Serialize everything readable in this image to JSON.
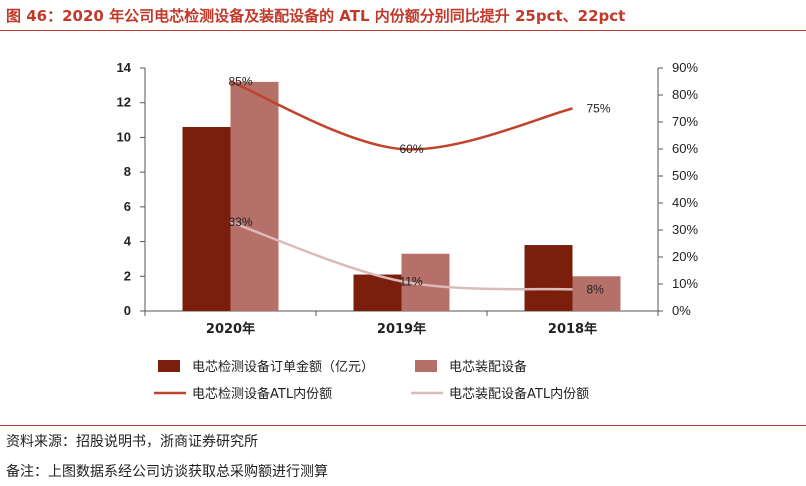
{
  "header": {
    "title": "图 46：2020 年公司电芯检测设备及装配设备的 ATL 内份额分别同比提升 25pct、22pct"
  },
  "footer": {
    "source": "资料来源：招股说明书，浙商证券研究所",
    "remark": "备注：上图数据系经公司访谈获取总采购额进行测算"
  },
  "chart_data": {
    "type": "bar",
    "categories": [
      "2020年",
      "2019年",
      "2018年"
    ],
    "series": [
      {
        "name": "电芯检测设备订单金额（亿元）",
        "kind": "bar",
        "axis": "left",
        "color": "#7b1f0c",
        "values": [
          10.6,
          2.1,
          3.8
        ]
      },
      {
        "name": "电芯装配设备",
        "kind": "bar",
        "axis": "left",
        "color": "#b5706a",
        "values": [
          13.2,
          3.3,
          2.0
        ]
      },
      {
        "name": "电芯检测设备ATL内份额",
        "kind": "line",
        "axis": "right",
        "color": "#c0442a",
        "values": [
          0.85,
          0.6,
          0.75
        ],
        "labels": [
          "85%",
          "60%",
          "75%"
        ]
      },
      {
        "name": "电芯装配设备ATL内份额",
        "kind": "line",
        "axis": "right",
        "color": "#dbbbb9",
        "values": [
          0.33,
          0.11,
          0.08
        ],
        "labels": [
          "33%",
          "11%",
          "8%"
        ]
      }
    ],
    "y_left": {
      "min": 0,
      "max": 14,
      "ticks": [
        "0",
        "2",
        "4",
        "6",
        "8",
        "10",
        "12",
        "14"
      ]
    },
    "y_right": {
      "min": 0,
      "max": 0.9,
      "ticks": [
        "0%",
        "10%",
        "20%",
        "30%",
        "40%",
        "50%",
        "60%",
        "70%",
        "80%",
        "90%"
      ]
    },
    "grid": false,
    "legend_position": "bottom"
  }
}
